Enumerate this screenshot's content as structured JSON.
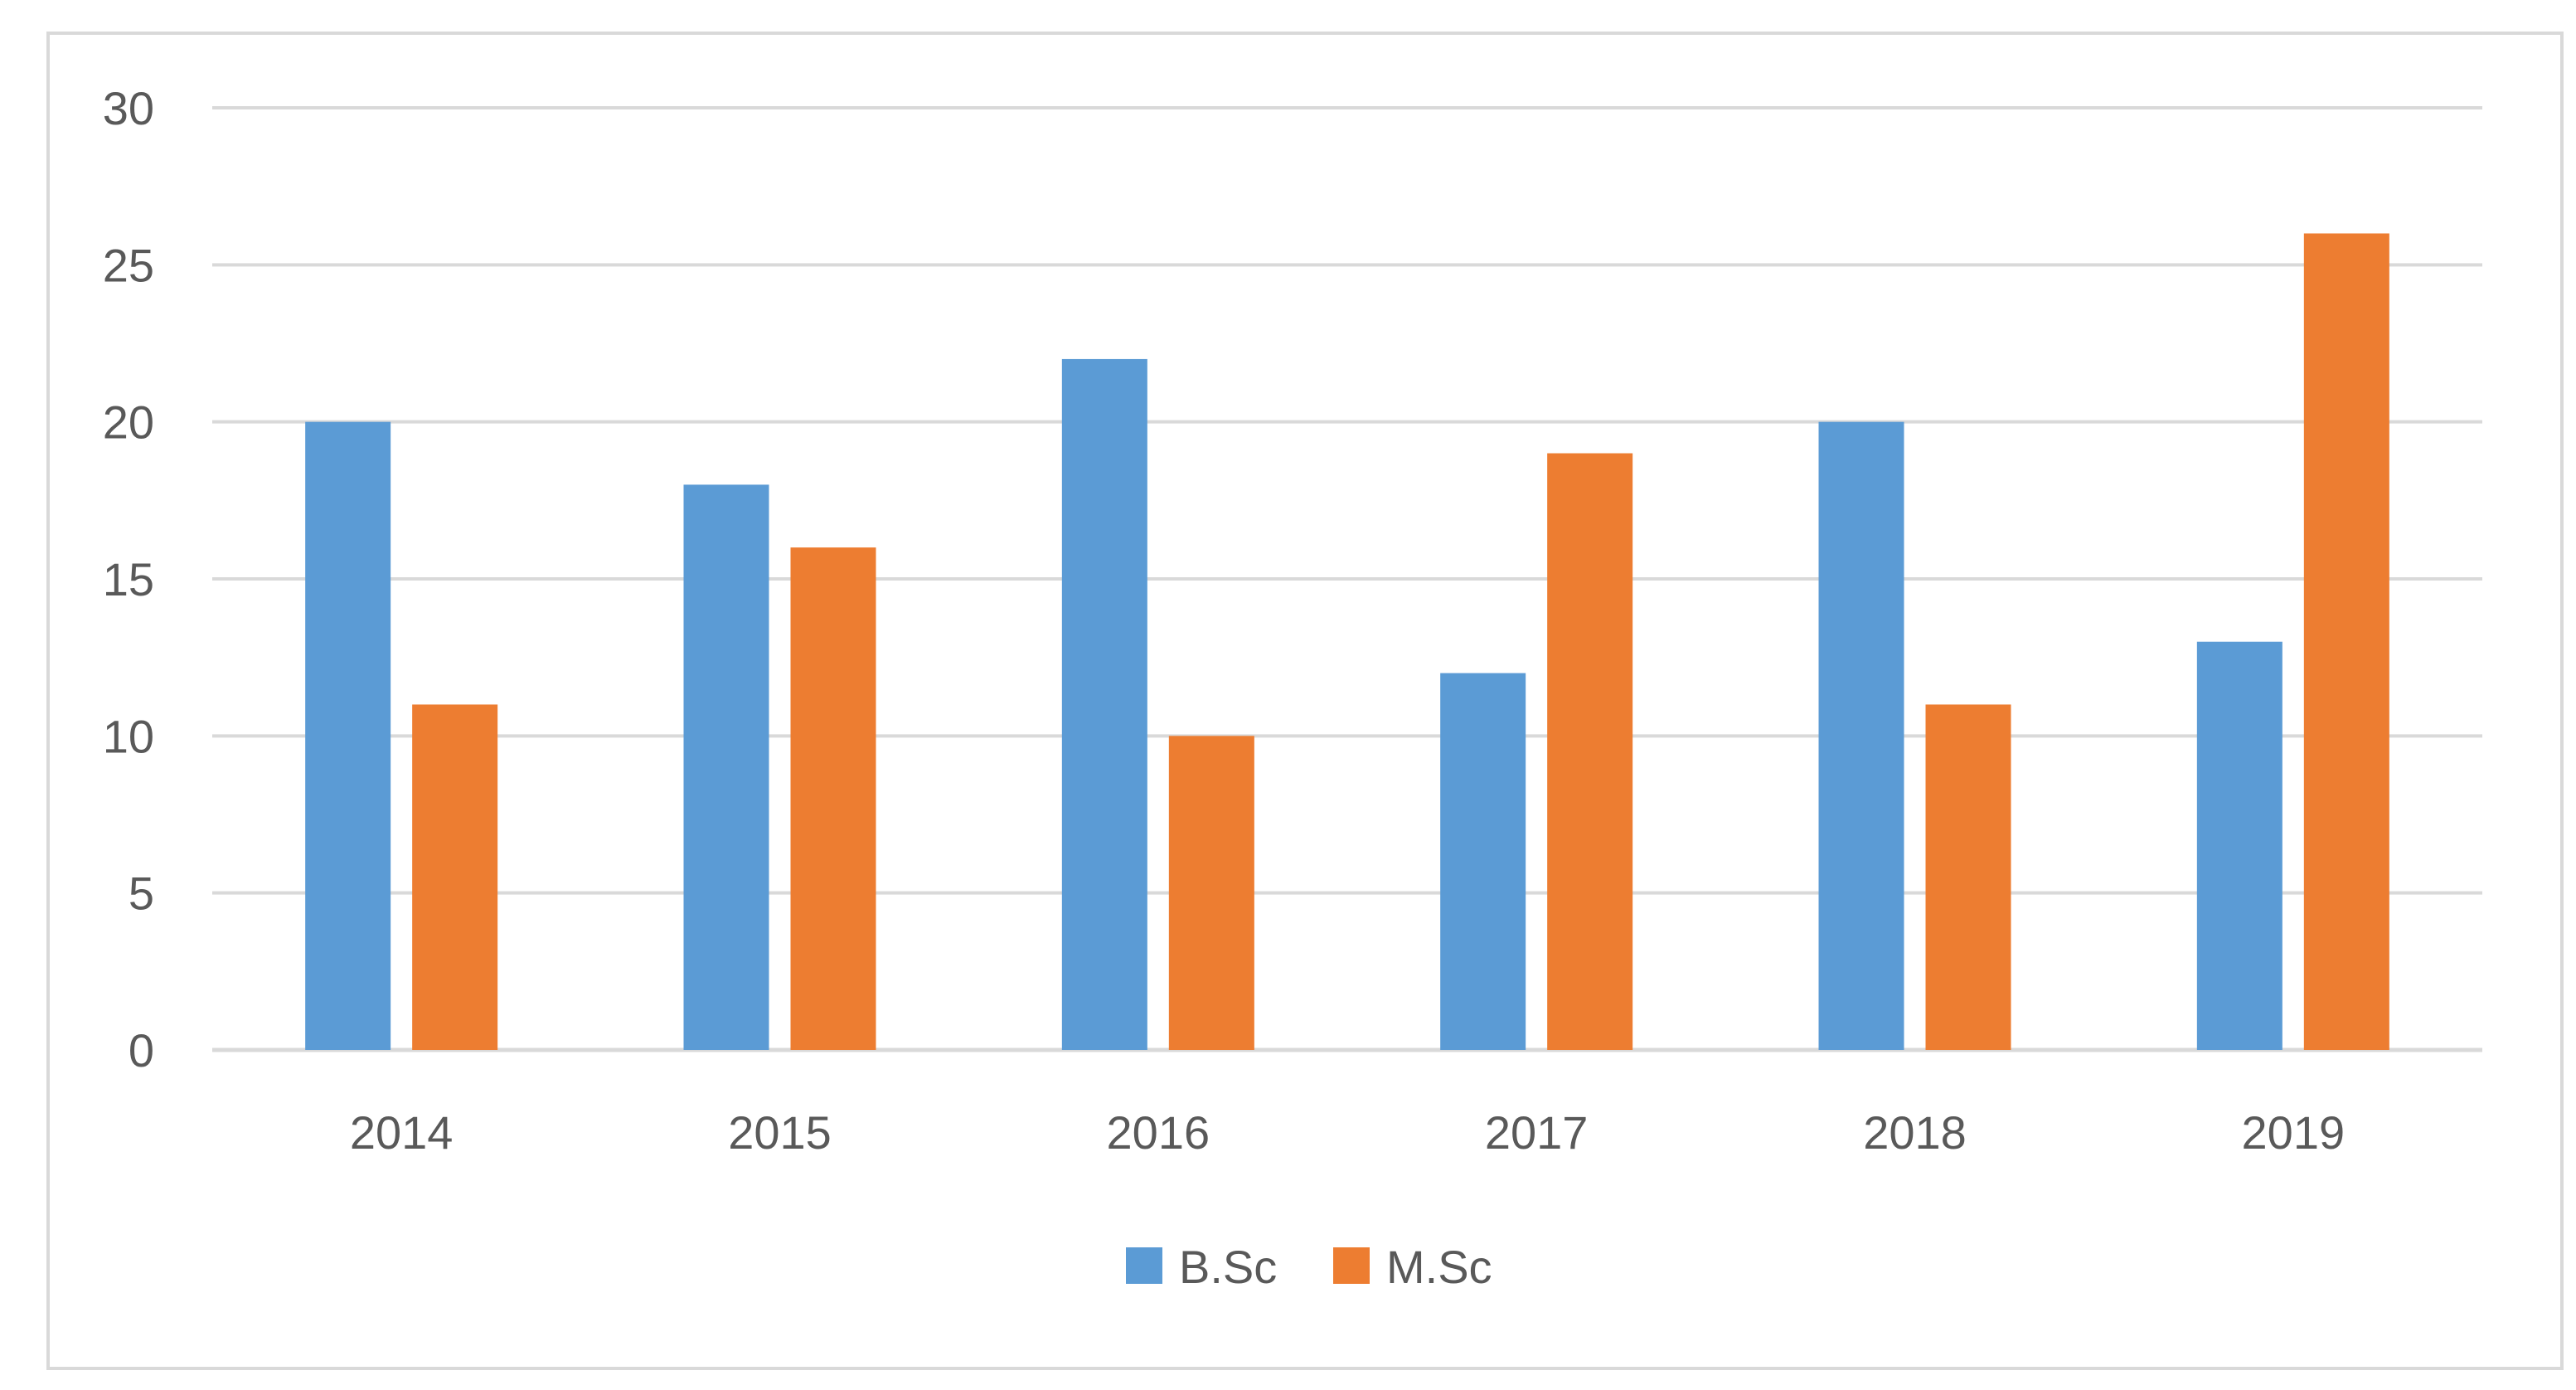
{
  "chart_data": {
    "type": "bar",
    "title": "",
    "xlabel": "",
    "ylabel": "",
    "categories": [
      "2014",
      "2015",
      "2016",
      "2017",
      "2018",
      "2019"
    ],
    "series": [
      {
        "name": "B.Sc",
        "color": "#5b9bd5",
        "values": [
          20,
          18,
          22,
          12,
          20,
          13
        ]
      },
      {
        "name": "M.Sc",
        "color": "#ed7d31",
        "values": [
          11,
          16,
          10,
          19,
          11,
          26
        ]
      }
    ],
    "ylim": [
      0,
      30
    ],
    "yticks": [
      0,
      5,
      10,
      15,
      20,
      25,
      30
    ],
    "ytick_labels": [
      "0",
      "5",
      "10",
      "15",
      "20",
      "25",
      "30"
    ],
    "grid": true,
    "legend_position": "bottom-center",
    "gridline_color": "#d9d9d9"
  }
}
